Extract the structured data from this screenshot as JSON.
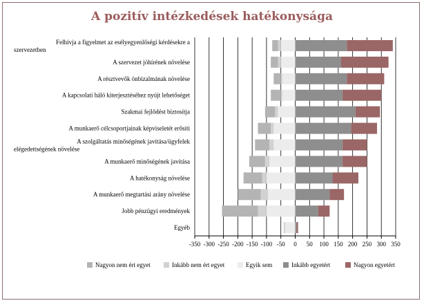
{
  "title": "A pozitív intézkedések hatékonysága",
  "legend": [
    {
      "label": "Nagyon nem ért egyet",
      "color": "#b4b4b4"
    },
    {
      "label": "Inkább nem ért egyet",
      "color": "#d2d2d2"
    },
    {
      "label": "Egyik sem",
      "color": "#ececec"
    },
    {
      "label": "Inkább egyetért",
      "color": "#8e8e8e"
    },
    {
      "label": "Nagyon egyetért",
      "color": "#9b6666"
    }
  ],
  "chart_data": {
    "type": "bar",
    "orientation": "horizontal-diverging-stacked",
    "title": "A pozitív intézkedések hatékonysága",
    "xlim": [
      -350,
      350
    ],
    "xticks": [
      -350,
      -300,
      -250,
      -200,
      -150,
      -100,
      -50,
      0,
      50,
      100,
      150,
      200,
      250,
      300,
      350
    ],
    "grid": true,
    "legend_position": "bottom",
    "categories": [
      "Felhívja a figyelmet az esélyegyenlőségi kérdésekre a szervezetben",
      "A szervezet jóhírének növelése",
      "A résztvevők önbizalmának növelése",
      "A kapcsolati háló kiterjesztéséhez nyújt lehetőséget",
      "Szakmai fejlődést biztosítja",
      "A munkaerő célcsoportjainak képviseletét erősíti",
      "A szolgáltatás minőségének javítása/ügyfelek elégedettségének növelése",
      "A munkaerő minőségének javítása",
      "A hatékonyság növelése",
      "A munkaerő megtartási arány növelése",
      "Jobb pénzügyi eredmények",
      "Egyéb"
    ],
    "series": [
      {
        "name": "Nagyon nem ért egyet",
        "side": "negative",
        "values": [
          20,
          25,
          25,
          35,
          35,
          45,
          50,
          55,
          65,
          80,
          125,
          0
        ]
      },
      {
        "name": "Inkább nem ért egyet",
        "side": "negative",
        "values": [
          10,
          10,
          5,
          5,
          10,
          10,
          15,
          15,
          15,
          25,
          30,
          5
        ]
      },
      {
        "name": "Egyik sem",
        "side": "negative",
        "values": [
          50,
          50,
          45,
          45,
          60,
          75,
          75,
          90,
          100,
          95,
          100,
          35
        ]
      },
      {
        "name": "Inkább egyetért",
        "side": "positive",
        "values": [
          180,
          160,
          180,
          165,
          210,
          195,
          165,
          165,
          130,
          120,
          80,
          5
        ]
      },
      {
        "name": "Nagyon egyetért",
        "side": "positive",
        "values": [
          160,
          165,
          130,
          135,
          85,
          90,
          85,
          85,
          90,
          50,
          40,
          5
        ]
      }
    ]
  }
}
